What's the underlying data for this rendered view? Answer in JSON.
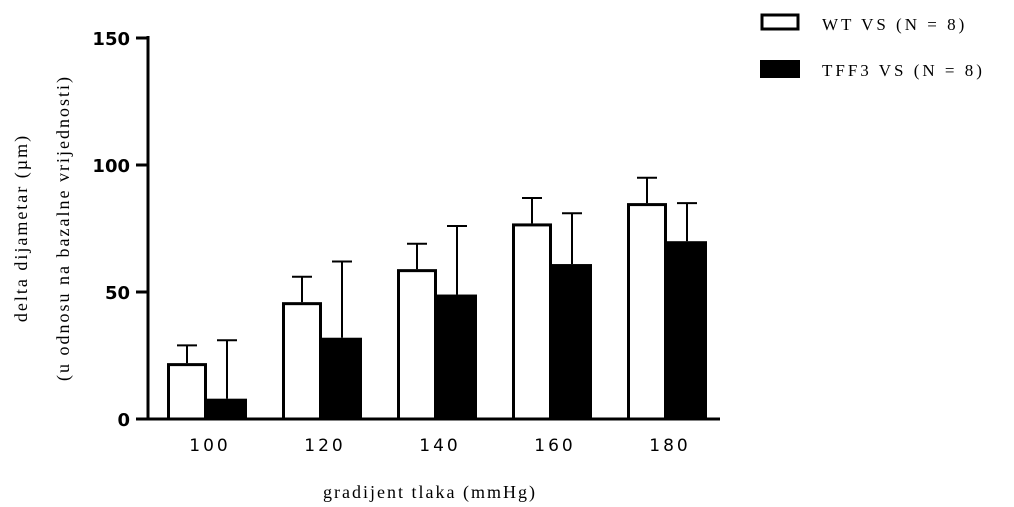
{
  "chart_data": {
    "type": "bar",
    "title": "",
    "xlabel": "gradijent tlaka (mmHg)",
    "ylabel_line1": "delta dijametar (µm)",
    "ylabel_line2": "(u odnosu na bazalne vrijednosti)",
    "ylim": [
      0,
      150
    ],
    "yticks": [
      "0",
      "50",
      "100",
      "150"
    ],
    "ytick_values": [
      0,
      50,
      100,
      150
    ],
    "categories": [
      "100",
      "120",
      "140",
      "160",
      "180"
    ],
    "series": [
      {
        "name": "WT VS (N = 8)",
        "fill": "#ffffff",
        "values": [
          22,
          46,
          59,
          77,
          85
        ],
        "error_upper": [
          7,
          10,
          10,
          10,
          10
        ]
      },
      {
        "name": "TFF3 VS (N = 8)",
        "fill": "#000000",
        "values": [
          8,
          32,
          49,
          61,
          70
        ],
        "error_upper": [
          23,
          30,
          27,
          20,
          15
        ]
      }
    ],
    "legend_position": "top-right",
    "grid": false
  }
}
